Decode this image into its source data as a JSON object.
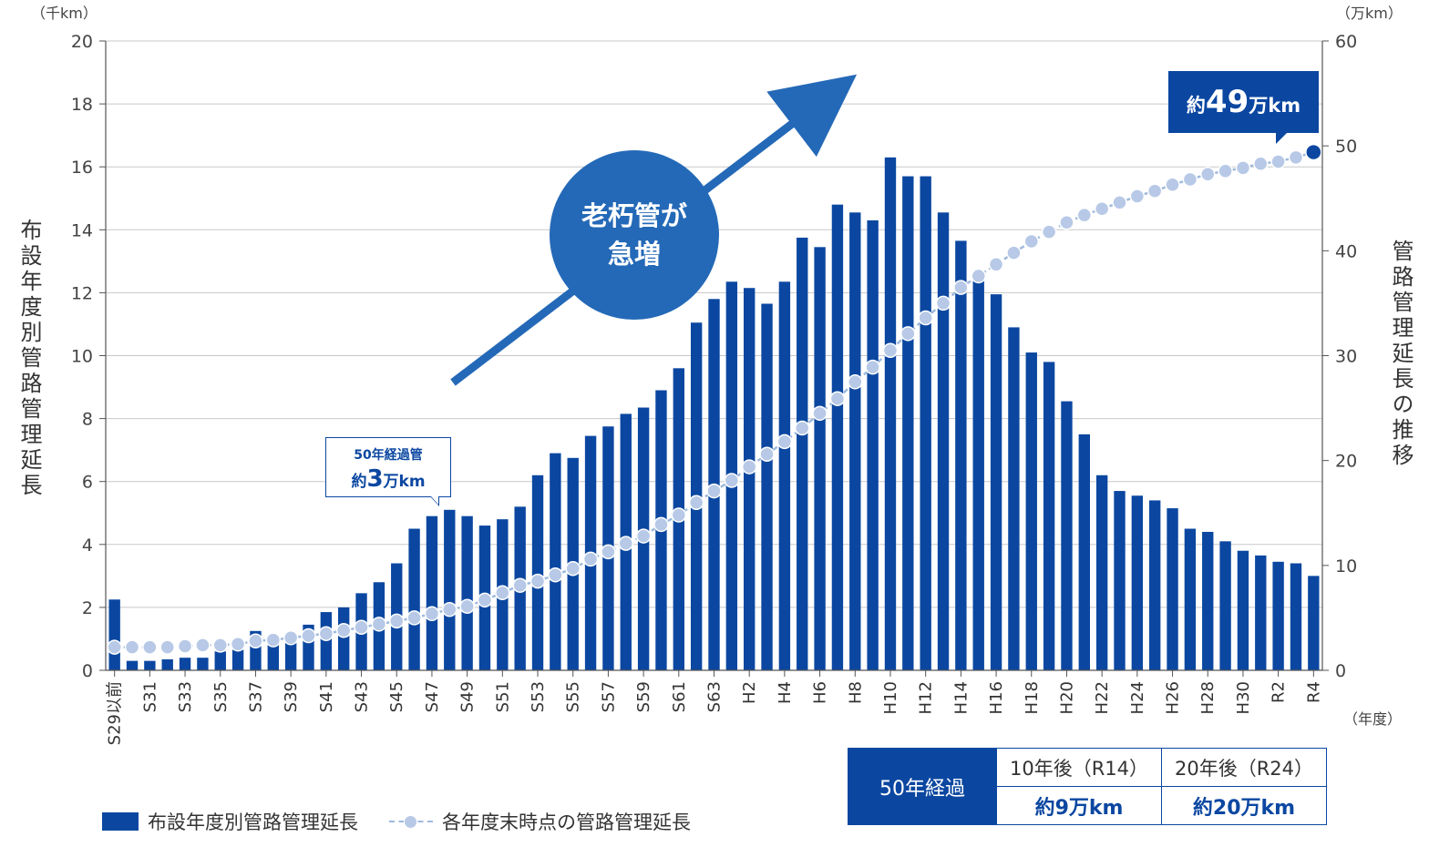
{
  "chart_data": {
    "type": "bar+line",
    "categories": [
      "S29以前",
      "S30",
      "S31",
      "S32",
      "S33",
      "S34",
      "S35",
      "S36",
      "S37",
      "S38",
      "S39",
      "S40",
      "S41",
      "S42",
      "S43",
      "S44",
      "S45",
      "S46",
      "S47",
      "S48",
      "S49",
      "S50",
      "S51",
      "S52",
      "S53",
      "S54",
      "S55",
      "S56",
      "S57",
      "S58",
      "S59",
      "S60",
      "S61",
      "S62",
      "S63",
      "H1",
      "H2",
      "H3",
      "H4",
      "H5",
      "H6",
      "H7",
      "H8",
      "H9",
      "H10",
      "H11",
      "H12",
      "H13",
      "H14",
      "H15",
      "H16",
      "H17",
      "H18",
      "H19",
      "H20",
      "H21",
      "H22",
      "H23",
      "H24",
      "H25",
      "H26",
      "H27",
      "H28",
      "H29",
      "H30",
      "R1",
      "R2",
      "R3",
      "R4"
    ],
    "tick_labels": [
      "S29以前",
      "S31",
      "S33",
      "S35",
      "S37",
      "S39",
      "S41",
      "S43",
      "S45",
      "S47",
      "S49",
      "S51",
      "S53",
      "S55",
      "S57",
      "S59",
      "S61",
      "S63",
      "H2",
      "H4",
      "H6",
      "H8",
      "H10",
      "H12",
      "H14",
      "H16",
      "H18",
      "H20",
      "H22",
      "H24",
      "H26",
      "H28",
      "H30",
      "R2",
      "R4"
    ],
    "series": [
      {
        "name": "布設年度別管路管理延長",
        "axis": "left",
        "unit": "千km",
        "values": [
          2.25,
          0.3,
          0.3,
          0.35,
          0.4,
          0.4,
          0.6,
          0.65,
          1.25,
          0.8,
          0.95,
          1.45,
          1.85,
          2.0,
          2.45,
          2.8,
          3.4,
          4.5,
          4.9,
          5.1,
          4.9,
          4.6,
          4.8,
          5.2,
          6.2,
          6.9,
          6.75,
          7.45,
          7.75,
          8.15,
          8.35,
          8.9,
          9.6,
          11.05,
          11.8,
          12.35,
          12.15,
          11.65,
          12.35,
          13.75,
          13.45,
          14.8,
          14.55,
          14.3,
          16.3,
          15.7,
          15.7,
          14.55,
          13.65,
          12.6,
          11.95,
          10.9,
          10.1,
          9.8,
          8.55,
          7.5,
          6.2,
          5.7,
          5.55,
          5.4,
          5.15,
          4.5,
          4.4,
          4.1,
          3.8,
          3.65,
          3.45,
          3.4,
          3.0
        ]
      },
      {
        "name": "各年度末時点の管路管理延長",
        "axis": "right",
        "unit": "万km",
        "values": [
          2.2,
          2.2,
          2.2,
          2.2,
          2.3,
          2.4,
          2.4,
          2.5,
          2.8,
          2.9,
          3.1,
          3.3,
          3.5,
          3.8,
          4.1,
          4.4,
          4.7,
          5.0,
          5.4,
          5.8,
          6.1,
          6.7,
          7.4,
          8.1,
          8.5,
          9.1,
          9.7,
          10.6,
          11.3,
          12.1,
          12.8,
          13.9,
          14.8,
          16.0,
          17.1,
          18.1,
          19.4,
          20.6,
          21.8,
          23.1,
          24.5,
          25.9,
          27.5,
          28.9,
          30.5,
          32.1,
          33.6,
          35.0,
          36.5,
          37.6,
          38.7,
          39.8,
          40.9,
          41.8,
          42.7,
          43.4,
          44.0,
          44.6,
          45.2,
          45.7,
          46.3,
          46.8,
          47.3,
          47.6,
          47.9,
          48.3,
          48.5,
          48.9,
          49.4
        ]
      }
    ],
    "y_left": {
      "label": "布設年度別管路管理延長",
      "unit": "（千km）",
      "min": 0,
      "max": 20,
      "ticks": [
        0,
        2,
        4,
        6,
        8,
        10,
        12,
        14,
        16,
        18,
        20
      ]
    },
    "y_right": {
      "label": "管路管理延長の推移",
      "unit": "（万km）",
      "min": 0,
      "max": 60,
      "ticks": [
        0,
        10,
        20,
        30,
        40,
        50,
        60
      ]
    },
    "x_unit": "（年度）",
    "grid": true,
    "legend_position": "bottom-left",
    "colors": {
      "bar": "#0b47a1",
      "line": "#b7c9e6",
      "line_stroke": "#9fb9dc",
      "accent": "#2469b7",
      "last_point": "#0b47a1"
    }
  },
  "legend": {
    "bar": "布設年度別管路管理延長",
    "line": "各年度末時点の管路管理延長"
  },
  "annotations": {
    "circle_line1": "老朽管が",
    "circle_line2": "急増",
    "callout_line1": "50年経過管",
    "callout_prefix": "約",
    "callout_num": "3",
    "callout_suffix": "万km",
    "badge_prefix": "約",
    "badge_num": "49",
    "badge_suffix": "万km"
  },
  "table": {
    "lead": "50年経過",
    "headers": [
      "10年後（R14）",
      "20年後（R24）"
    ],
    "values": [
      "約9万km",
      "約20万km"
    ]
  }
}
